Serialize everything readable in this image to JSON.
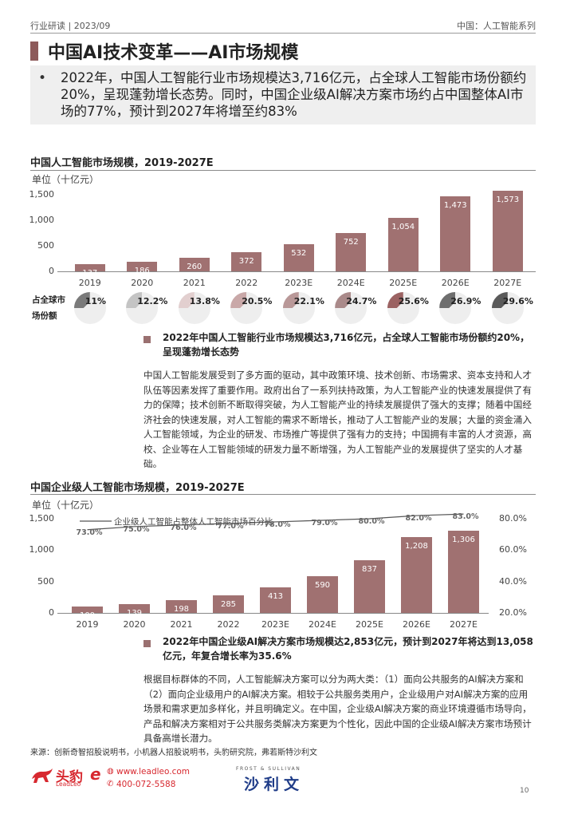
{
  "header": {
    "left": "行业研读 | 2023/09",
    "right": "中国：人工智能系列"
  },
  "title": "中国AI技术变革——AI市场规模",
  "summary": {
    "bullet": "•",
    "text": "2022年，中国人工智能行业市场规模达3,716亿元，占全球人工智能市场份额约20%，呈现蓬勃增长态势。同时，中国企业级AI解决方案市场约占中国整体AI市场的77%，预计到2027年将增至约83%"
  },
  "chart1_meta": {
    "share_label_1": "占全球市",
    "share_label_2": "场份额"
  },
  "chart2_meta": {
    "line_legend": "企业级人工智能占整体人工智能市场百分比"
  },
  "chart_data": [
    {
      "type": "bar",
      "title": "中国人工智能市场规模，2019-2027E",
      "ylabel": "单位（十亿元）",
      "categories": [
        "2019",
        "2020",
        "2021",
        "2022",
        "2023E",
        "2024E",
        "2025E",
        "2026E",
        "2027E"
      ],
      "values": [
        137,
        186,
        260,
        372,
        532,
        752,
        1054,
        1473,
        1573
      ],
      "value_labels": [
        "137",
        "186",
        "260",
        "372",
        "532",
        "752",
        "1,054",
        "1,473",
        "1,573"
      ],
      "ylim": [
        0,
        1500
      ],
      "yticks": [
        "0",
        "500",
        "1,000",
        "1,500"
      ],
      "global_share": {
        "values": [
          11,
          12.2,
          13.8,
          20.5,
          22.1,
          24.7,
          25.6,
          26.9,
          29.6
        ],
        "labels": [
          "11%",
          "12.2%",
          "13.8%",
          "20.5%",
          "22.1%",
          "24.7%",
          "25.6%",
          "26.9%",
          "29.6%"
        ],
        "colors": [
          "#7a7a7a",
          "#c4c4c4",
          "#e2cfcf",
          "#c9a8a8",
          "#b99898",
          "#aa8a8a",
          "#9b6262",
          "#6e6e6e",
          "#5a5a5a"
        ]
      },
      "bar_color": "#a07171"
    },
    {
      "type": "bar",
      "title": "中国企业级人工智能市场规模，2019-2027E",
      "ylabel": "单位（十亿元）",
      "categories": [
        "2019",
        "2020",
        "2021",
        "2022",
        "2023E",
        "2024E",
        "2025E",
        "2026E",
        "2027E"
      ],
      "values": [
        100,
        139,
        198,
        285,
        413,
        590,
        837,
        1208,
        1306
      ],
      "value_labels": [
        "100",
        "139",
        "198",
        "285",
        "413",
        "590",
        "837",
        "1,208",
        "1,306"
      ],
      "ylim": [
        0,
        1500
      ],
      "yticks": [
        "0",
        "500",
        "1,000",
        "1,500"
      ],
      "y2lim": [
        20,
        80
      ],
      "y2ticks": [
        "20.0%",
        "40.0%",
        "60.0%",
        "80.0%"
      ],
      "line_series": {
        "name": "企业级人工智能占整体人工智能市场百分比",
        "values": [
          73.0,
          75.0,
          76.0,
          77.0,
          78.0,
          79.0,
          80.0,
          82.0,
          83.0
        ],
        "labels": [
          "73.0%",
          "75.0%",
          "76.0%",
          "77.0%",
          "78.0%",
          "79.0%",
          "80.0%",
          "82.0%",
          "83.0%"
        ]
      },
      "bar_color": "#a07171"
    }
  ],
  "section1": {
    "highlight": "2022年中国人工智能行业市场规模达3,716亿元，占全球人工智能市场份额约20%，呈现蓬勃增长态势",
    "body": "中国人工智能发展受到了多方面的驱动，其中政策环境、技术创新、市场需求、资本支持和人才队伍等因素发挥了重要作用。政府出台了一系列扶持政策，为人工智能产业的快速发展提供了有力的保障；技术创新不断取得突破，为人工智能产业的持续发展提供了强大的支撑；随着中国经济社会的快速发展，对人工智能的需求不断增长，推动了人工智能产业的发展；大量的资金涌入人工智能领域，为企业的研发、市场推广等提供了强有力的支持；中国拥有丰富的人才资源，高校、企业等在人工智能领域的研发力量不断增强，为人工智能产业的发展提供了坚实的人才基础。"
  },
  "section2": {
    "highlight": "2022年中国企业级AI解决方案市场规模达2,853亿元，预计到2027年将达到13,058亿元，年复合增长率为35.6%",
    "body": "根据目标群体的不同，人工智能解决方案可以分为两大类：（1）面向公共服务的AI解决方案和（2）面向企业级用户的AI解决方案。相较于公共服务类用户，企业级用户对AI解决方案的应用场景和需求更加多样化，并且明确定义。在中国，企业级AI解决方案的商业环境遵循市场导向，产品和解决方案相对于公共服务类解决方案更为个性化，因此中国的企业级AI解决方案市场预计具备高增长潜力。"
  },
  "source": "来源：创新奇智招股说明书，小机器人招股说明书，头豹研究院，弗若斯特沙利文",
  "footer": {
    "brand_cn": "头豹",
    "brand_en": "LeadLeo",
    "website": "www.leadleo.com",
    "phone": "400-072-5588",
    "partner_top": "FROST & SULLIVAN",
    "partner": "沙利文",
    "page": "10"
  }
}
